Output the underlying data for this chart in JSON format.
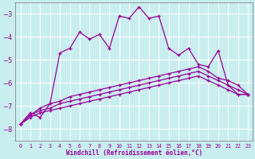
{
  "xlabel": "Windchill (Refroidissement éolien,°C)",
  "background_color": "#c8eef0",
  "grid_color": "#b0d8dc",
  "line_color": "#990099",
  "x_values": [
    0,
    1,
    2,
    3,
    4,
    5,
    6,
    7,
    8,
    9,
    10,
    11,
    12,
    13,
    14,
    15,
    16,
    17,
    18,
    19,
    20,
    21,
    22,
    23
  ],
  "series": [
    [
      -7.8,
      -7.3,
      -7.5,
      -6.9,
      -4.7,
      -4.5,
      -3.8,
      -4.1,
      -3.9,
      -4.5,
      -3.1,
      -3.2,
      -2.7,
      -3.2,
      -3.1,
      -4.5,
      -4.8,
      -4.5,
      -5.2,
      -5.3,
      -4.6,
      -6.1,
      -6.5,
      -6.5
    ],
    [
      -7.8,
      -7.4,
      -7.1,
      -6.9,
      -6.8,
      -6.6,
      -6.5,
      -6.4,
      -6.3,
      -6.2,
      -6.1,
      -6.0,
      -5.9,
      -5.8,
      -5.7,
      -5.6,
      -5.5,
      -5.4,
      -5.3,
      -5.5,
      -5.8,
      -5.9,
      -6.1,
      -6.5
    ],
    [
      -7.8,
      -7.4,
      -7.2,
      -7.1,
      -6.9,
      -6.8,
      -6.7,
      -6.6,
      -6.5,
      -6.4,
      -6.3,
      -6.2,
      -6.1,
      -6.0,
      -5.9,
      -5.8,
      -5.7,
      -5.6,
      -5.5,
      -5.7,
      -5.9,
      -6.1,
      -6.3,
      -6.5
    ],
    [
      -7.8,
      -7.5,
      -7.3,
      -7.2,
      -7.1,
      -7.0,
      -6.9,
      -6.8,
      -6.7,
      -6.6,
      -6.5,
      -6.4,
      -6.3,
      -6.2,
      -6.1,
      -6.0,
      -5.9,
      -5.8,
      -5.7,
      -5.9,
      -6.1,
      -6.3,
      -6.5,
      -6.5
    ]
  ],
  "ylim": [
    -8.5,
    -2.5
  ],
  "xlim": [
    -0.5,
    23.5
  ],
  "yticks": [
    -8,
    -7,
    -6,
    -5,
    -4,
    -3
  ],
  "xticks": [
    0,
    1,
    2,
    3,
    4,
    5,
    6,
    7,
    8,
    9,
    10,
    11,
    12,
    13,
    14,
    15,
    16,
    17,
    18,
    19,
    20,
    21,
    22,
    23
  ]
}
